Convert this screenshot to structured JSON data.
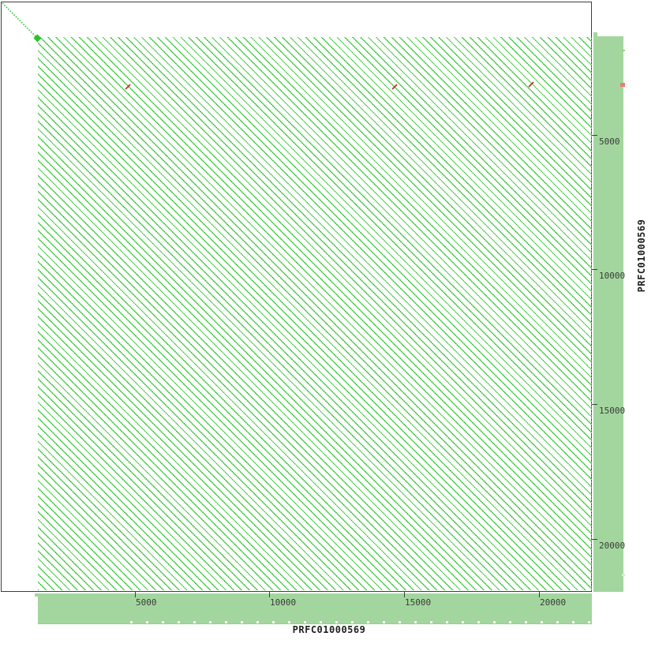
{
  "labels": {
    "x_axis_title": "PRFC01000569",
    "y_axis_title": "PRFC01000569"
  },
  "chart_data": {
    "type": "dotplot",
    "title": "",
    "x_sequence": "PRFC01000569",
    "y_sequence": "PRFC01000569",
    "sequence_length_bp": 21970,
    "x_ticks": [
      5000,
      10000,
      15000,
      20000
    ],
    "y_ticks": [
      5000,
      10000,
      15000,
      20000
    ],
    "axis_range_bp": [
      0,
      21970
    ],
    "grid": false,
    "forward_match_color": "#28c428",
    "reverse_match_color": "#c03020",
    "unique_leader_bp": {
      "start": 30,
      "end": 1290
    },
    "leader_blob_bp": {
      "center": 1330,
      "radius_px": 5
    },
    "tandem_repeat_region_bp": {
      "start": 1360,
      "end": 21970,
      "period_bp": 205
    },
    "reverse_matches_bp": [
      {
        "x": 4688,
        "y": 3135
      },
      {
        "x": 14590,
        "y": 3135
      },
      {
        "x": 19658,
        "y": 3047
      }
    ],
    "side_bar_marks_right": [
      {
        "bp": 1870,
        "color": "#8ed487",
        "w": 4,
        "h": 2
      },
      {
        "bp": 3135,
        "color": "#f4796b",
        "w": 6,
        "h": 5
      },
      {
        "bp": 21330,
        "color": "#d6ecd2",
        "w": 4,
        "h": 3
      }
    ],
    "sequence_bar_color": "#a3d69e"
  }
}
